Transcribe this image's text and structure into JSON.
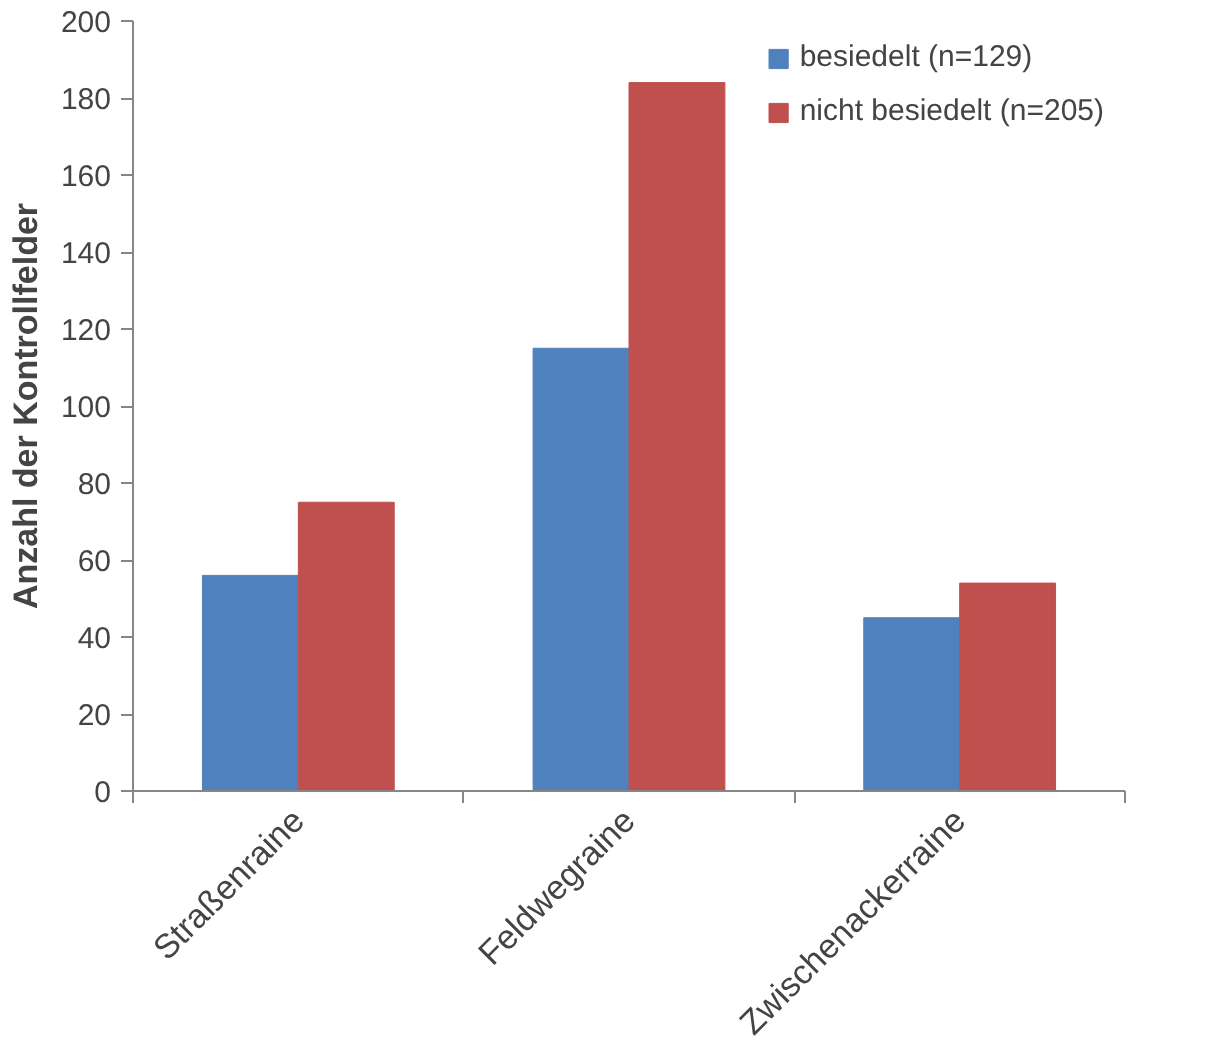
{
  "chart_data": {
    "type": "bar",
    "ylabel": "Anzahl der Kontrollfelder",
    "categories": [
      "Straßenraine",
      "Feldwegraine",
      "Zwischenackerraine"
    ],
    "series": [
      {
        "name": "besiedelt (n=129)",
        "color": "#4f81bd",
        "values": [
          56,
          115,
          45
        ]
      },
      {
        "name": "nicht besiedelt (n=205)",
        "color": "#c0504d",
        "values": [
          75,
          184,
          54
        ]
      }
    ],
    "ylim": [
      0,
      200
    ],
    "yticks": [
      0,
      20,
      40,
      60,
      80,
      100,
      120,
      140,
      160,
      180,
      200
    ],
    "grid": false,
    "legend": "top right"
  }
}
